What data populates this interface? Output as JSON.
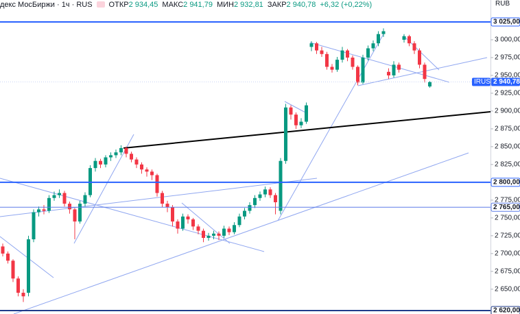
{
  "header": {
    "title": "декс МосБиржи · 1ч · RUS",
    "ohlc_legend": [
      {
        "label": "ОТКР",
        "text": "2 934,45"
      },
      {
        "label": "МАКС",
        "text": "2 941,79"
      },
      {
        "label": "МИН",
        "text": "2 932,81"
      },
      {
        "label": "ЗАКР",
        "text": "2 940,78"
      }
    ],
    "change": "+6,32 (+0,22%)",
    "currency": "RUB"
  },
  "chart_data": {
    "type": "candlestick",
    "open": [
      2710,
      2700,
      2690,
      2665,
      2645,
      2645,
      2720,
      2758,
      2762,
      2760,
      2778,
      2782,
      2785,
      2770,
      2762,
      2745,
      2770,
      2782,
      2820,
      2830,
      2825,
      2835,
      2838,
      2842,
      2848,
      2840,
      2832,
      2825,
      2818,
      2815,
      2810,
      2785,
      2770,
      2765,
      2745,
      2735,
      2752,
      2748,
      2738,
      2732,
      2722,
      2725,
      2728,
      2725,
      2735,
      2730,
      2740,
      2752,
      2760,
      2768,
      2778,
      2783,
      2790,
      2782,
      2760,
      2830,
      2905,
      2895,
      2880,
      2885,
      2990,
      2995,
      2985,
      2980,
      2962,
      2958,
      2972,
      2985,
      2975,
      2962,
      2940,
      2975,
      2988,
      2995,
      3008,
      2955,
      2950,
      2965,
      3000,
      3005,
      2995,
      2985,
      2965,
      2934.45
    ],
    "high": [
      2714,
      2703,
      2692,
      2668,
      2650,
      2725,
      2762,
      2766,
      2768,
      2782,
      2787,
      2790,
      2788,
      2773,
      2764,
      2774,
      2786,
      2824,
      2834,
      2833,
      2838,
      2842,
      2846,
      2852,
      2850,
      2843,
      2835,
      2828,
      2821,
      2818,
      2812,
      2788,
      2774,
      2768,
      2748,
      2756,
      2755,
      2750,
      2741,
      2735,
      2729,
      2732,
      2731,
      2739,
      2738,
      2744,
      2756,
      2764,
      2772,
      2782,
      2787,
      2794,
      2793,
      2785,
      2834,
      2910,
      2908,
      2898,
      2890,
      2912,
      2998,
      2997,
      2990,
      2983,
      2966,
      2976,
      2990,
      2987,
      2978,
      2964,
      2979,
      2992,
      2999,
      3012,
      3016,
      2960,
      2970,
      2968,
      3008,
      3007,
      2998,
      2988,
      2968,
      2941.79
    ],
    "low": [
      2696,
      2686,
      2660,
      2640,
      2632,
      2640,
      2716,
      2752,
      2755,
      2757,
      2774,
      2778,
      2766,
      2756,
      2720,
      2742,
      2766,
      2779,
      2815,
      2820,
      2821,
      2830,
      2834,
      2838,
      2835,
      2828,
      2820,
      2812,
      2808,
      2803,
      2780,
      2765,
      2758,
      2738,
      2728,
      2732,
      2742,
      2733,
      2727,
      2716,
      2718,
      2720,
      2719,
      2722,
      2726,
      2727,
      2737,
      2748,
      2756,
      2764,
      2774,
      2779,
      2778,
      2755,
      2755,
      2826,
      2888,
      2875,
      2876,
      2882,
      2984,
      2980,
      2976,
      2958,
      2954,
      2955,
      2968,
      2970,
      2958,
      2936,
      2938,
      2971,
      2984,
      2991,
      3004,
      2945,
      2947,
      2954,
      2996,
      2991,
      2980,
      2960,
      2940,
      2932.81
    ],
    "close": [
      2700,
      2690,
      2665,
      2645,
      2640,
      2720,
      2758,
      2762,
      2760,
      2778,
      2782,
      2785,
      2770,
      2762,
      2745,
      2770,
      2782,
      2820,
      2830,
      2825,
      2835,
      2838,
      2842,
      2848,
      2840,
      2832,
      2825,
      2818,
      2815,
      2810,
      2785,
      2770,
      2765,
      2745,
      2735,
      2752,
      2748,
      2738,
      2732,
      2722,
      2725,
      2728,
      2725,
      2735,
      2730,
      2740,
      2752,
      2760,
      2768,
      2778,
      2783,
      2790,
      2782,
      2772,
      2830,
      2905,
      2895,
      2880,
      2885,
      2908,
      2995,
      2985,
      2980,
      2962,
      2958,
      2972,
      2985,
      2975,
      2962,
      2940,
      2975,
      2988,
      2995,
      3008,
      3012,
      2950,
      2965,
      2958,
      3005,
      2995,
      2985,
      2965,
      2945,
      2940.78
    ],
    "up_color": "#089981",
    "down_color": "#f23645",
    "ylim": [
      2615.2,
      3055.8
    ],
    "yticks": [
      {
        "value": 3000,
        "label": "3 000,00"
      },
      {
        "value": 2975,
        "label": "2 975,00"
      },
      {
        "value": 2950,
        "label": "2 950,00"
      },
      {
        "value": 2925,
        "label": "2 925,00"
      },
      {
        "value": 2900,
        "label": "2 900,00"
      },
      {
        "value": 2875,
        "label": "2 875,00"
      },
      {
        "value": 2850,
        "label": "2 850,00"
      },
      {
        "value": 2825,
        "label": "2 825,00"
      },
      {
        "value": 2775,
        "label": "2 775,00"
      },
      {
        "value": 2750,
        "label": "2 750,00"
      },
      {
        "value": 2725,
        "label": "2 725,00"
      },
      {
        "value": 2700,
        "label": "2 700,00"
      },
      {
        "value": 2675,
        "label": "2 675,00"
      },
      {
        "value": 2650,
        "label": "2 650,00"
      }
    ],
    "hlines": [
      {
        "value": 3025,
        "label": "3 025,00",
        "color": "#2962ff"
      },
      {
        "value": 2800,
        "label": "2 800,00",
        "color": "#2962ff"
      },
      {
        "value": 2765,
        "label": "2 765,00",
        "color": "#5b7be8"
      },
      {
        "value": 2620,
        "label": "2 620,00",
        "color": "#1e3a8a"
      }
    ],
    "last_price": {
      "symbol": "IRUS",
      "label": "2 940,78",
      "color": "#2962ff"
    }
  }
}
